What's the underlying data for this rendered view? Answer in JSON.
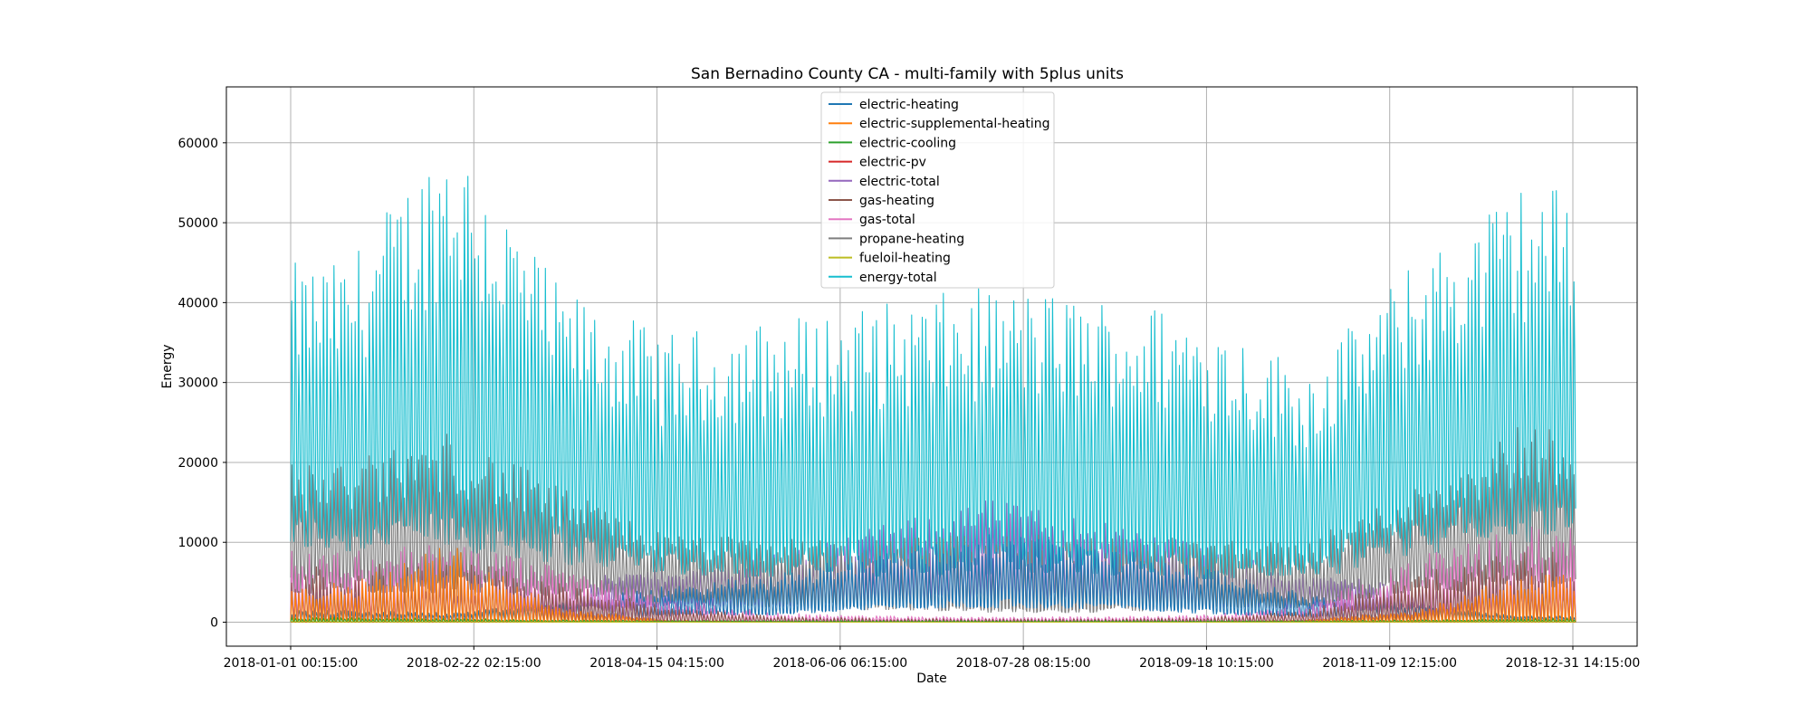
{
  "chart_data": {
    "type": "line",
    "title": "San Bernadino County CA - multi-family with 5plus units",
    "xlabel": "Date",
    "ylabel": "Energy",
    "ylim": [
      -3000,
      67000
    ],
    "yticks": [
      0,
      10000,
      20000,
      30000,
      40000,
      50000,
      60000
    ],
    "xticks": [
      "2018-01-01 00:15:00",
      "2018-02-22 02:15:00",
      "2018-04-15 04:15:00",
      "2018-06-06 06:15:00",
      "2018-07-28 08:15:00",
      "2018-09-18 10:15:00",
      "2018-11-09 12:15:00",
      "2018-12-31 14:15:00"
    ],
    "grid": true,
    "legend_position": "upper center",
    "x_start": "2018-01-01 00:15:00",
    "x_end": "2018-12-31 14:15:00",
    "sampling_note": "envelope of dense 15-minute series, approximated by daily peak/base values per month",
    "series": [
      {
        "name": "electric-heating",
        "color": "#1f77b4",
        "monthly_peak": [
          1500,
          1200,
          2500,
          4500,
          6000,
          9000,
          11000,
          10000,
          7000,
          3500,
          2500,
          800
        ],
        "monthly_base": [
          200,
          200,
          500,
          1200,
          1500,
          2500,
          3000,
          2800,
          1800,
          1000,
          600,
          200
        ]
      },
      {
        "name": "electric-supplemental-heating",
        "color": "#ff7f0e",
        "monthly_peak": [
          5000,
          10000,
          2000,
          300,
          100,
          50,
          50,
          50,
          100,
          300,
          1500,
          6000
        ],
        "monthly_base": [
          0,
          0,
          0,
          0,
          0,
          0,
          0,
          0,
          0,
          0,
          0,
          0
        ]
      },
      {
        "name": "electric-cooling",
        "color": "#2ca02c",
        "monthly_peak": [
          600,
          500,
          300,
          200,
          200,
          200,
          200,
          200,
          200,
          200,
          300,
          500
        ],
        "monthly_base": [
          0,
          0,
          0,
          0,
          0,
          0,
          0,
          0,
          0,
          0,
          0,
          0
        ]
      },
      {
        "name": "electric-pv",
        "color": "#d62728",
        "monthly_peak": [
          0,
          0,
          0,
          0,
          0,
          0,
          0,
          0,
          0,
          0,
          0,
          0
        ],
        "monthly_base": [
          0,
          0,
          0,
          0,
          0,
          0,
          0,
          0,
          0,
          0,
          0,
          0
        ]
      },
      {
        "name": "electric-total",
        "color": "#9467bd",
        "monthly_peak": [
          5000,
          4500,
          5000,
          7000,
          8500,
          12000,
          15500,
          13000,
          10000,
          6000,
          5000,
          5000
        ],
        "monthly_base": [
          1500,
          1500,
          2000,
          2500,
          3000,
          3500,
          4000,
          3800,
          3000,
          2500,
          2000,
          1500
        ]
      },
      {
        "name": "gas-heating",
        "color": "#8c564b",
        "monthly_peak": [
          7000,
          8000,
          5000,
          2000,
          800,
          500,
          400,
          400,
          600,
          1500,
          6000,
          9000
        ],
        "monthly_base": [
          0,
          0,
          0,
          0,
          0,
          0,
          0,
          0,
          0,
          0,
          0,
          0
        ]
      },
      {
        "name": "gas-total",
        "color": "#e377c2",
        "monthly_peak": [
          9000,
          10000,
          7000,
          3000,
          1200,
          800,
          700,
          700,
          900,
          2000,
          8000,
          12000
        ],
        "monthly_base": [
          500,
          500,
          300,
          100,
          100,
          100,
          100,
          100,
          100,
          100,
          300,
          500
        ]
      },
      {
        "name": "propane-heating",
        "color": "#7f7f7f",
        "monthly_peak": [
          20000,
          24000,
          17000,
          11000,
          10500,
          10500,
          11000,
          11000,
          10500,
          10000,
          17000,
          25000
        ],
        "monthly_base": [
          6000,
          6000,
          5000,
          3500,
          3000,
          2500,
          2000,
          2000,
          2500,
          3000,
          6000,
          7000
        ]
      },
      {
        "name": "fueloil-heating",
        "color": "#bcbd22",
        "monthly_peak": [
          100,
          100,
          50,
          20,
          10,
          10,
          10,
          10,
          10,
          20,
          80,
          100
        ],
        "monthly_base": [
          0,
          0,
          0,
          0,
          0,
          0,
          0,
          0,
          0,
          0,
          0,
          0
        ]
      },
      {
        "name": "energy-total",
        "color": "#17becf",
        "monthly_peak": [
          45000,
          63000,
          42000,
          36000,
          38000,
          40000,
          42000,
          41000,
          39000,
          32000,
          45000,
          55000
        ],
        "monthly_base": [
          14000,
          15000,
          12000,
          10000,
          9000,
          9500,
          10000,
          10000,
          9000,
          8500,
          14000,
          16000
        ]
      }
    ]
  }
}
